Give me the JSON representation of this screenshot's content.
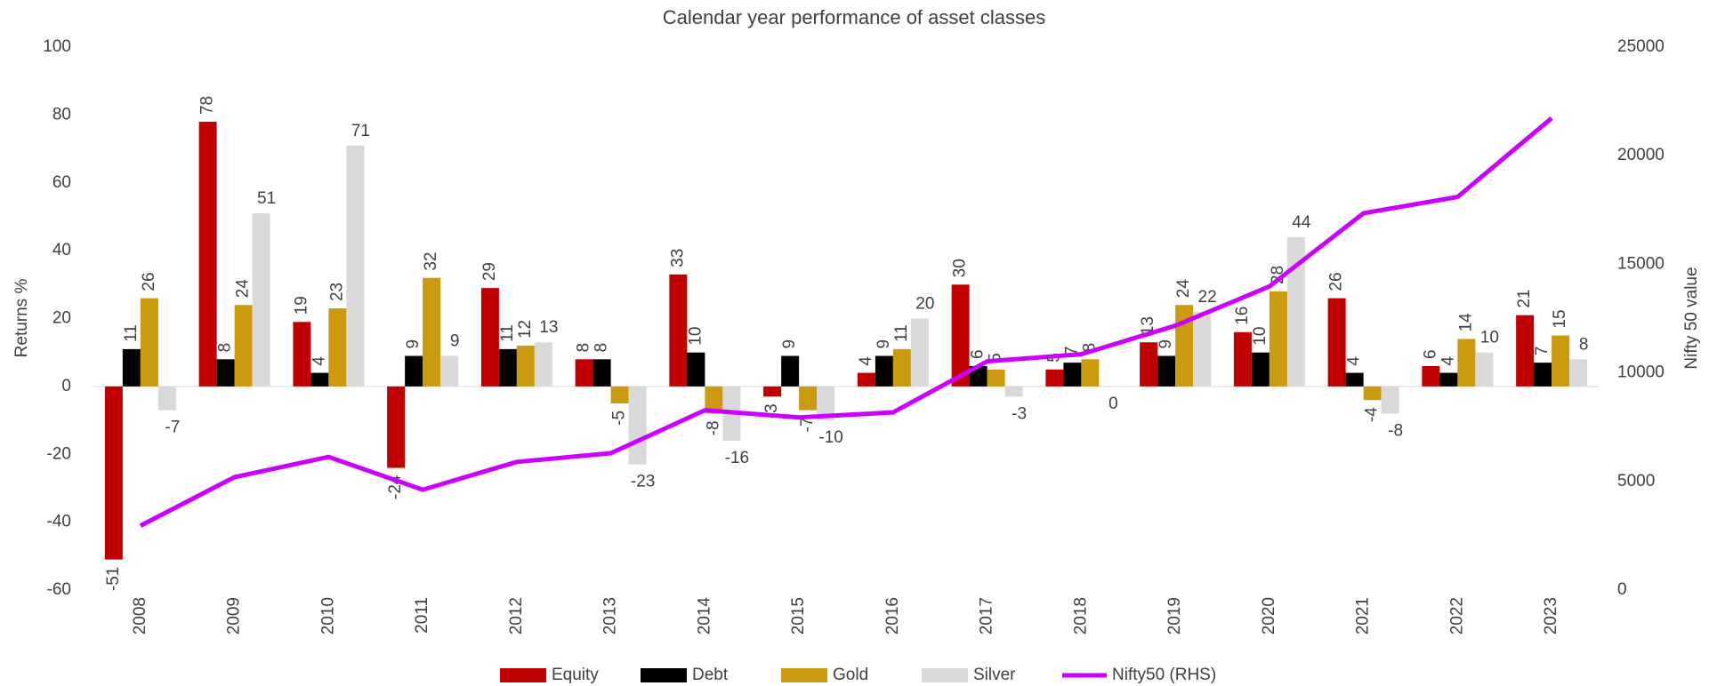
{
  "chart_data": {
    "type": "bar",
    "title": "Calendar year performance of asset classes",
    "y_label": "Returns %",
    "y2_label": "Nifty 50 value",
    "categories": [
      "2008",
      "2009",
      "2010",
      "2011",
      "2012",
      "2013",
      "2014",
      "2015",
      "2016",
      "2017",
      "2018",
      "2019",
      "2020",
      "2021",
      "2022",
      "2023"
    ],
    "series": [
      {
        "name": "Equity",
        "color": "#c00000",
        "values": [
          -51,
          78,
          19,
          -24,
          29,
          8,
          33,
          -3,
          4,
          30,
          5,
          13,
          16,
          26,
          6,
          21
        ]
      },
      {
        "name": "Debt",
        "color": "#000000",
        "values": [
          11,
          8,
          4,
          9,
          11,
          8,
          10,
          9,
          9,
          6,
          7,
          9,
          10,
          4,
          4,
          7
        ]
      },
      {
        "name": "Gold",
        "color": "#cc9a0e",
        "values": [
          26,
          24,
          23,
          32,
          12,
          -5,
          -8,
          -7,
          11,
          5,
          8,
          24,
          28,
          -4,
          14,
          15
        ]
      },
      {
        "name": "Silver",
        "color": "#d9d9d9",
        "values": [
          -7,
          51,
          71,
          9,
          13,
          -23,
          -16,
          -10,
          20,
          -3,
          0,
          22,
          44,
          -8,
          10,
          8
        ]
      },
      {
        "name": "Nifty50 (RHS)",
        "color": "#cc00ff",
        "type": "line",
        "axis": "y2",
        "values": [
          2960,
          5200,
          6130,
          4620,
          5900,
          6300,
          8280,
          7950,
          8180,
          10530,
          10860,
          12170,
          13980,
          17350,
          18100,
          21730
        ]
      }
    ],
    "ylim": [
      -60,
      100
    ],
    "yticks": [
      -60,
      -40,
      -20,
      0,
      20,
      40,
      60,
      80,
      100
    ],
    "y2lim": [
      0,
      25000
    ],
    "y2ticks": [
      0,
      5000,
      10000,
      15000,
      20000,
      25000
    ],
    "legend": "bottom",
    "grid": false
  }
}
